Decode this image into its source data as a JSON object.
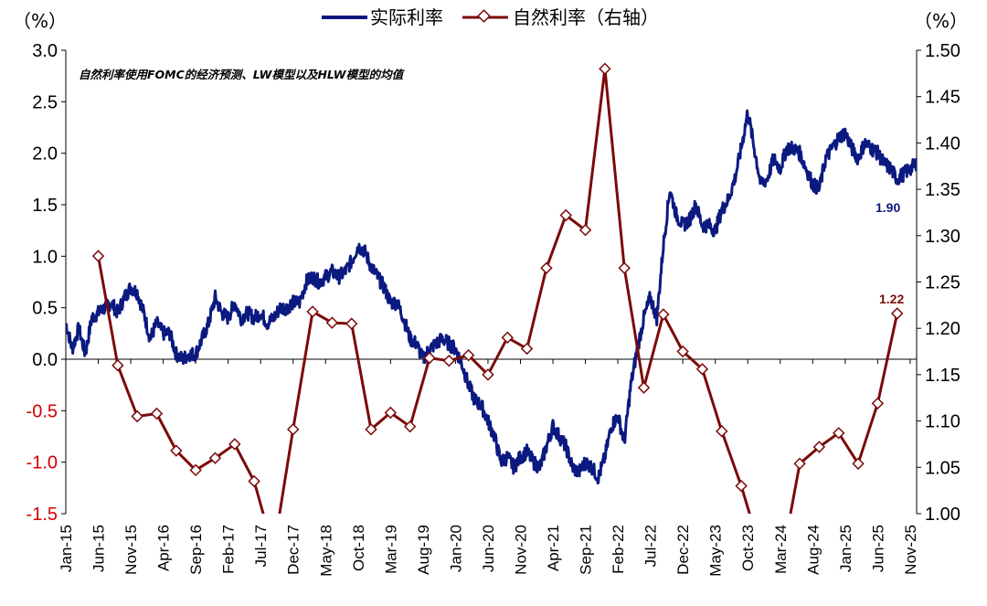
{
  "chart_data": {
    "type": "line",
    "note": "自然利率使用FOMC的经济预测、LW模型以及HLW模型的均值",
    "y_left": {
      "unit": "（%）",
      "range": [
        -1.5,
        3.0
      ],
      "ticks": [
        "3.0",
        "2.5",
        "2.0",
        "1.5",
        "1.0",
        "0.5",
        "0.0",
        "-0.5",
        "-1.0",
        "-1.5"
      ]
    },
    "y_right": {
      "unit": "（%）",
      "range": [
        1.0,
        1.5
      ],
      "ticks": [
        "1.50",
        "1.45",
        "1.40",
        "1.35",
        "1.30",
        "1.25",
        "1.20",
        "1.15",
        "1.10",
        "1.05",
        "1.00"
      ]
    },
    "x_ticks": [
      "Jan-15",
      "Jun-15",
      "Nov-15",
      "Apr-16",
      "Sep-16",
      "Feb-17",
      "Jul-17",
      "Dec-17",
      "May-18",
      "Oct-18",
      "Mar-19",
      "Aug-19",
      "Jan-20",
      "Jun-20",
      "Nov-20",
      "Apr-21",
      "Sep-21",
      "Feb-22",
      "Jul-22",
      "Dec-22",
      "May-23",
      "Oct-23",
      "Mar-24",
      "Aug-24",
      "Jan-25",
      "Jun-25",
      "Nov-25"
    ],
    "legend_position": "top-center",
    "series": [
      {
        "name": "实际利率",
        "axis": "left",
        "color": "#0b1a80",
        "end_label": "1.90",
        "points": [
          [
            "2015-01",
            0.35
          ],
          [
            "2015-02",
            0.1
          ],
          [
            "2015-03",
            0.3
          ],
          [
            "2015-04",
            0.05
          ],
          [
            "2015-05",
            0.4
          ],
          [
            "2015-06",
            0.45
          ],
          [
            "2015-07",
            0.5
          ],
          [
            "2015-08",
            0.55
          ],
          [
            "2015-09",
            0.45
          ],
          [
            "2015-10",
            0.6
          ],
          [
            "2015-11",
            0.7
          ],
          [
            "2015-12",
            0.65
          ],
          [
            "2016-01",
            0.45
          ],
          [
            "2016-02",
            0.2
          ],
          [
            "2016-03",
            0.35
          ],
          [
            "2016-04",
            0.25
          ],
          [
            "2016-05",
            0.25
          ],
          [
            "2016-06",
            0.05
          ],
          [
            "2016-07",
            0.0
          ],
          [
            "2016-08",
            0.05
          ],
          [
            "2016-09",
            0.05
          ],
          [
            "2016-10",
            0.2
          ],
          [
            "2016-11",
            0.35
          ],
          [
            "2016-12",
            0.6
          ],
          [
            "2017-01",
            0.45
          ],
          [
            "2017-02",
            0.4
          ],
          [
            "2017-03",
            0.55
          ],
          [
            "2017-04",
            0.4
          ],
          [
            "2017-05",
            0.45
          ],
          [
            "2017-06",
            0.4
          ],
          [
            "2017-07",
            0.45
          ],
          [
            "2017-08",
            0.35
          ],
          [
            "2017-09",
            0.4
          ],
          [
            "2017-10",
            0.5
          ],
          [
            "2017-11",
            0.5
          ],
          [
            "2017-12",
            0.55
          ],
          [
            "2018-01",
            0.55
          ],
          [
            "2018-02",
            0.75
          ],
          [
            "2018-03",
            0.8
          ],
          [
            "2018-04",
            0.75
          ],
          [
            "2018-05",
            0.8
          ],
          [
            "2018-06",
            0.85
          ],
          [
            "2018-07",
            0.8
          ],
          [
            "2018-08",
            0.85
          ],
          [
            "2018-09",
            0.95
          ],
          [
            "2018-10",
            1.1
          ],
          [
            "2018-11",
            1.05
          ],
          [
            "2018-12",
            0.9
          ],
          [
            "2019-01",
            0.8
          ],
          [
            "2019-02",
            0.7
          ],
          [
            "2019-03",
            0.55
          ],
          [
            "2019-04",
            0.55
          ],
          [
            "2019-05",
            0.4
          ],
          [
            "2019-06",
            0.2
          ],
          [
            "2019-07",
            0.15
          ],
          [
            "2019-08",
            0.0
          ],
          [
            "2019-09",
            0.1
          ],
          [
            "2019-10",
            0.15
          ],
          [
            "2019-11",
            0.2
          ],
          [
            "2019-12",
            0.15
          ],
          [
            "2020-01",
            0.1
          ],
          [
            "2020-02",
            -0.05
          ],
          [
            "2020-03",
            -0.25
          ],
          [
            "2020-04",
            -0.4
          ],
          [
            "2020-05",
            -0.45
          ],
          [
            "2020-06",
            -0.6
          ],
          [
            "2020-07",
            -0.75
          ],
          [
            "2020-08",
            -1.0
          ],
          [
            "2020-09",
            -0.95
          ],
          [
            "2020-10",
            -1.05
          ],
          [
            "2020-11",
            -0.95
          ],
          [
            "2020-12",
            -0.9
          ],
          [
            "2021-01",
            -1.0
          ],
          [
            "2021-02",
            -1.05
          ],
          [
            "2021-03",
            -0.85
          ],
          [
            "2021-04",
            -0.65
          ],
          [
            "2021-05",
            -0.75
          ],
          [
            "2021-06",
            -0.85
          ],
          [
            "2021-07",
            -1.05
          ],
          [
            "2021-08",
            -1.1
          ],
          [
            "2021-09",
            -1.0
          ],
          [
            "2021-10",
            -1.05
          ],
          [
            "2021-11",
            -1.15
          ],
          [
            "2021-12",
            -0.95
          ],
          [
            "2022-01",
            -0.65
          ],
          [
            "2022-02",
            -0.55
          ],
          [
            "2022-03",
            -0.8
          ],
          [
            "2022-04",
            -0.25
          ],
          [
            "2022-05",
            0.1
          ],
          [
            "2022-06",
            0.4
          ],
          [
            "2022-07",
            0.6
          ],
          [
            "2022-08",
            0.4
          ],
          [
            "2022-09",
            1.1
          ],
          [
            "2022-10",
            1.65
          ],
          [
            "2022-11",
            1.4
          ],
          [
            "2022-12",
            1.3
          ],
          [
            "2023-01",
            1.35
          ],
          [
            "2023-02",
            1.5
          ],
          [
            "2023-03",
            1.3
          ],
          [
            "2023-04",
            1.3
          ],
          [
            "2023-05",
            1.25
          ],
          [
            "2023-06",
            1.45
          ],
          [
            "2023-07",
            1.55
          ],
          [
            "2023-08",
            1.75
          ],
          [
            "2023-09",
            2.05
          ],
          [
            "2023-10",
            2.4
          ],
          [
            "2023-11",
            2.05
          ],
          [
            "2023-12",
            1.7
          ],
          [
            "2024-01",
            1.75
          ],
          [
            "2024-02",
            1.95
          ],
          [
            "2024-03",
            1.85
          ],
          [
            "2024-04",
            2.05
          ],
          [
            "2024-05",
            2.05
          ],
          [
            "2024-06",
            2.0
          ],
          [
            "2024-07",
            1.85
          ],
          [
            "2024-08",
            1.7
          ],
          [
            "2024-09",
            1.65
          ],
          [
            "2024-10",
            1.95
          ],
          [
            "2024-11",
            2.05
          ],
          [
            "2024-12",
            2.15
          ],
          [
            "2025-01",
            2.2
          ],
          [
            "2025-02",
            2.05
          ],
          [
            "2025-03",
            1.95
          ],
          [
            "2025-04",
            2.1
          ],
          [
            "2025-05",
            2.05
          ],
          [
            "2025-06",
            2.0
          ],
          [
            "2025-07",
            1.9
          ],
          [
            "2025-08",
            1.85
          ],
          [
            "2025-09",
            1.75
          ],
          [
            "2025-10",
            1.8
          ],
          [
            "2025-11",
            1.85
          ],
          [
            "2025-12",
            1.9
          ]
        ]
      },
      {
        "name": "自然利率（右轴）",
        "axis": "right",
        "color": "#7b0a0a",
        "end_label": "1.22",
        "points": [
          [
            "2015-06",
            1.278
          ],
          [
            "2015-09",
            1.16
          ],
          [
            "2015-12",
            1.105
          ],
          [
            "2016-03",
            1.108
          ],
          [
            "2016-06",
            1.068
          ],
          [
            "2016-09",
            1.047
          ],
          [
            "2016-12",
            1.06
          ],
          [
            "2017-03",
            1.075
          ],
          [
            "2017-06",
            1.035
          ],
          [
            "2017-09",
            0.96
          ],
          [
            "2017-12",
            1.091
          ],
          [
            "2018-03",
            1.218
          ],
          [
            "2018-06",
            1.206
          ],
          [
            "2018-09",
            1.205
          ],
          [
            "2018-12",
            1.091
          ],
          [
            "2019-03",
            1.109
          ],
          [
            "2019-06",
            1.094
          ],
          [
            "2019-09",
            1.168
          ],
          [
            "2019-12",
            1.165
          ],
          [
            "2020-03",
            1.171
          ],
          [
            "2020-06",
            1.15
          ],
          [
            "2020-09",
            1.19
          ],
          [
            "2020-12",
            1.178
          ],
          [
            "2021-03",
            1.265
          ],
          [
            "2021-06",
            1.322
          ],
          [
            "2021-09",
            1.306
          ],
          [
            "2021-12",
            1.48
          ],
          [
            "2022-03",
            1.265
          ],
          [
            "2022-06",
            1.136
          ],
          [
            "2022-09",
            1.215
          ],
          [
            "2022-12",
            1.175
          ],
          [
            "2023-03",
            1.156
          ],
          [
            "2023-06",
            1.089
          ],
          [
            "2023-09",
            1.03
          ],
          [
            "2023-12",
            0.96
          ],
          [
            "2024-03",
            0.94
          ],
          [
            "2024-06",
            1.054
          ],
          [
            "2024-09",
            1.072
          ],
          [
            "2024-12",
            1.087
          ],
          [
            "2025-03",
            1.054
          ],
          [
            "2025-06",
            1.119
          ],
          [
            "2025-09",
            1.216
          ]
        ]
      }
    ]
  }
}
